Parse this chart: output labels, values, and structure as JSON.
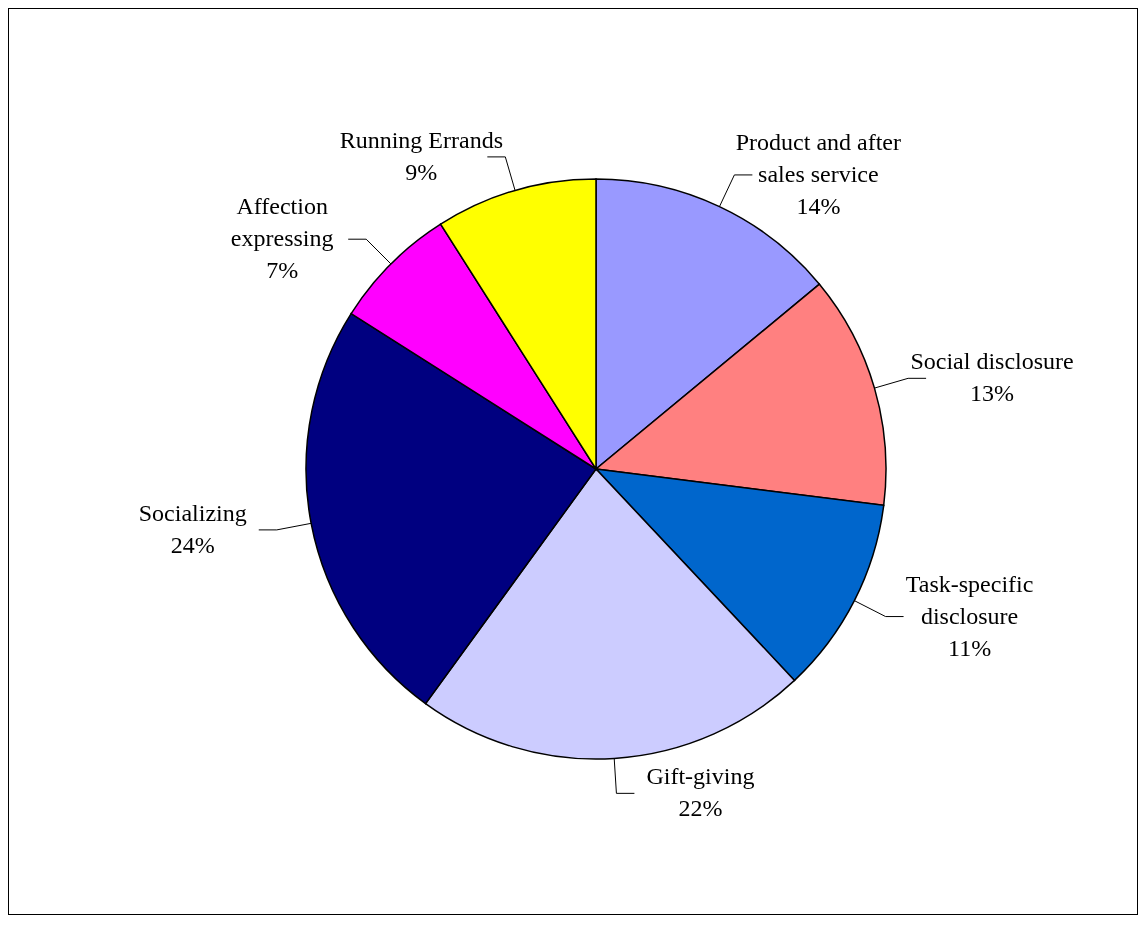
{
  "chart_data": {
    "type": "pie",
    "categories": [
      "Product and after sales service",
      "Social disclosure",
      "Task-specific disclosure",
      "Gift-giving",
      "Socializing",
      "Affection expressing",
      "Running Errands"
    ],
    "values": [
      14,
      13,
      11,
      22,
      24,
      7,
      9
    ],
    "value_labels": [
      "14%",
      "13%",
      "11%",
      "22%",
      "24%",
      "7%",
      "9%"
    ],
    "colors": [
      "#9999ff",
      "#ff8080",
      "#0066cc",
      "#ccccff",
      "#000080",
      "#ff00ff",
      "#ffff00"
    ],
    "legend": false
  }
}
